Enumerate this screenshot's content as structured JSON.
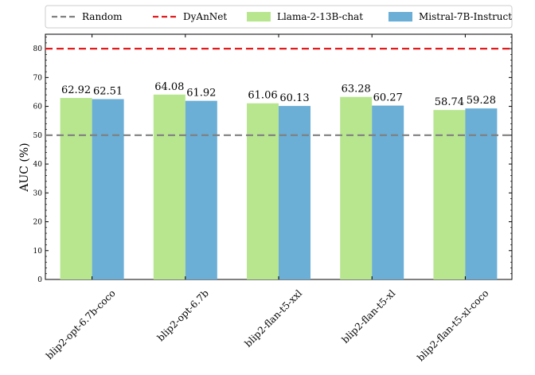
{
  "chart_data": {
    "type": "bar",
    "title": "",
    "xlabel": "",
    "ylabel": "AUC (%)",
    "ylim": [
      0,
      85
    ],
    "yticks": [
      0,
      10,
      20,
      30,
      40,
      50,
      60,
      70,
      80
    ],
    "categories": [
      "blip2-opt-6.7b-coco",
      "blip2-opt-6.7b",
      "blip2-flan-t5-xxl",
      "blip2-flan-t5-xl",
      "blip2-flan-t5-xl-coco"
    ],
    "series": [
      {
        "name": "Llama-2-13B-chat",
        "values": [
          62.92,
          64.08,
          61.06,
          63.28,
          58.74
        ],
        "color": "#b8e68f"
      },
      {
        "name": "Mistral-7B-Instruct",
        "values": [
          62.51,
          61.92,
          60.13,
          60.27,
          59.28
        ],
        "color": "#6baed6"
      }
    ],
    "reference_lines": [
      {
        "name": "Random",
        "value": 50,
        "color": "#808080",
        "style": "dashed"
      },
      {
        "name": "DyAnNet",
        "value": 80,
        "color": "#e31a1c",
        "style": "dashed"
      }
    ],
    "legend": {
      "placement": "top",
      "ncol": 4
    },
    "grid": false,
    "value_labels": true,
    "value_labels_text": [
      [
        "62.92",
        "64.08",
        "61.06",
        "63.28",
        "58.74"
      ],
      [
        "62.51",
        "61.92",
        "60.13",
        "60.27",
        "59.28"
      ]
    ]
  }
}
